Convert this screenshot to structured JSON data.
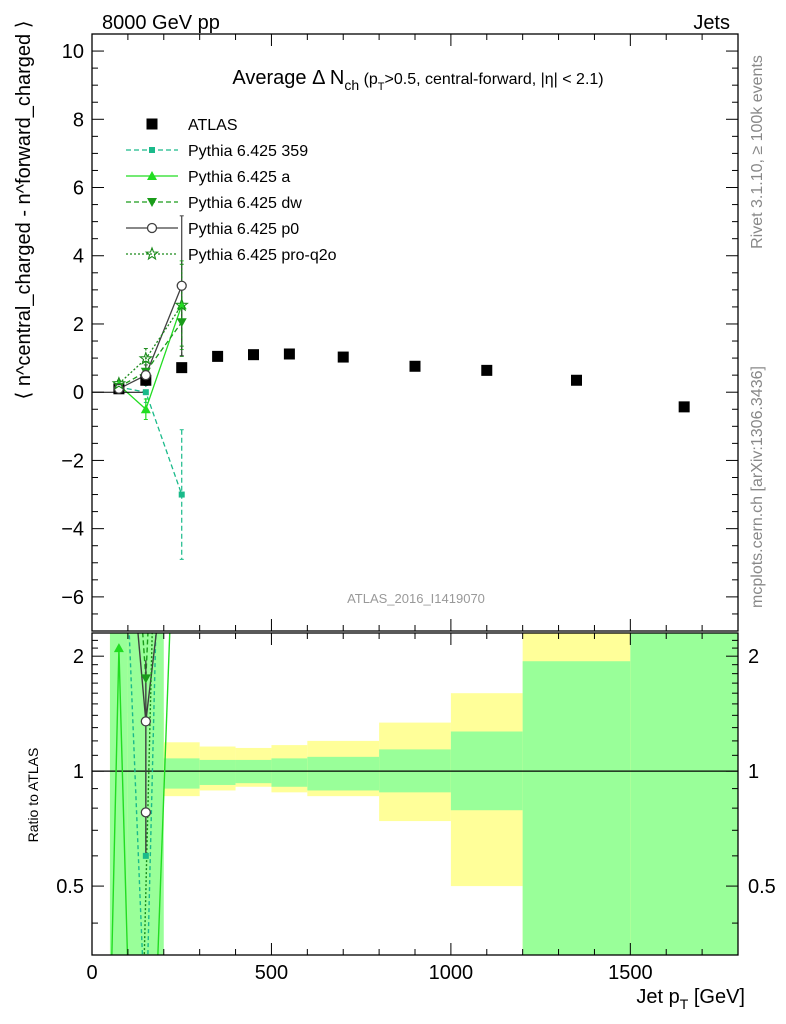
{
  "header": {
    "left": "8000 GeV pp",
    "right": "Jets"
  },
  "side_labels": {
    "rivet": "Rivet 3.1.10, ≥ 100k events",
    "mcplots": "mcplots.cern.ch [arXiv:1306.3436]"
  },
  "chart_data": {
    "type": "scatter",
    "title": {
      "prefix": "Average ",
      "delta": "Δ N",
      "sub": "ch",
      "cond_open": " (p",
      "cond_sub": "T",
      "cond_rest": ">0.5, central-forward, |η| < 2.1)"
    },
    "analysis_id": "ATLAS_2016_I1419070",
    "xlabel": "Jet p",
    "xlabel_sub": "T",
    "xlabel_unit": " [GeV]",
    "ylabel": "⟨ n^central_charged - n^forward_charged ⟩",
    "ratio_ylabel": "Ratio to ATLAS",
    "xlim": [
      0,
      1800
    ],
    "ylim": [
      -7,
      10.5
    ],
    "ratio_ylim": [
      0.33,
      2.3
    ],
    "ratio_log": true,
    "x_ticks": [
      0,
      500,
      1000,
      1500
    ],
    "y_ticks": [
      -6,
      -4,
      -2,
      0,
      2,
      4,
      6,
      8,
      10
    ],
    "ratio_ticks": [
      0.5,
      1,
      2
    ],
    "ratio_tick_labels": [
      "0.5",
      "1",
      "2"
    ],
    "legend_position": "top-left",
    "colors": {
      "data": "#000000",
      "p359": "#1aba8a",
      "pa": "#22dd22",
      "pdw": "#1a9c1a",
      "pp0": "#404040",
      "pq2o": "#1a8a1a",
      "band_green": "#99ff99",
      "band_yellow": "#ffff99"
    },
    "series": [
      {
        "name": "ATLAS",
        "key": "data",
        "x": [
          75,
          150,
          250,
          350,
          450,
          550,
          700,
          900,
          1100,
          1350,
          1650
        ],
        "y": [
          0.1,
          0.35,
          0.72,
          1.05,
          1.1,
          1.12,
          1.03,
          0.76,
          0.64,
          0.35,
          -0.43
        ]
      },
      {
        "name": "Pythia 6.425 359",
        "key": "p359",
        "x": [
          75,
          150,
          250
        ],
        "y": [
          0.15,
          0.0,
          -3.0
        ],
        "err": [
          0.1,
          0.3,
          1.9
        ]
      },
      {
        "name": "Pythia 6.425 a",
        "key": "pa",
        "x": [
          75,
          150,
          250
        ],
        "y": [
          0.21,
          -0.5,
          2.55
        ],
        "err": [
          0.1,
          0.3,
          1.3
        ]
      },
      {
        "name": "Pythia 6.425 dw",
        "key": "pdw",
        "x": [
          75,
          150,
          250
        ],
        "y": [
          0.15,
          0.6,
          2.05
        ],
        "err": [
          0.1,
          0.3,
          1.0
        ]
      },
      {
        "name": "Pythia 6.425 p0",
        "key": "pp0",
        "x": [
          75,
          150,
          250
        ],
        "y": [
          0.1,
          0.5,
          3.12
        ],
        "err": [
          0.1,
          0.3,
          2.05
        ]
      },
      {
        "name": "Pythia 6.425 pro-q2o",
        "key": "pq2o",
        "x": [
          75,
          150,
          250
        ],
        "y": [
          0.25,
          0.98,
          2.55
        ],
        "err": [
          0.1,
          0.3,
          1.2
        ]
      }
    ],
    "ratio_bands": {
      "bin_edges": [
        50,
        100,
        200,
        300,
        400,
        500,
        600,
        800,
        1000,
        1200,
        1500,
        1800
      ],
      "green_low": [
        0.33,
        0.33,
        0.9,
        0.92,
        0.93,
        0.91,
        0.89,
        0.88,
        0.79,
        0.33,
        0.33
      ],
      "green_high": [
        2.3,
        2.3,
        1.08,
        1.07,
        1.07,
        1.08,
        1.09,
        1.14,
        1.27,
        1.94,
        2.3
      ],
      "yellow_low": [
        0.33,
        0.7,
        0.86,
        0.89,
        0.91,
        0.88,
        0.86,
        0.74,
        0.5,
        0.33,
        0.33
      ],
      "yellow_high": [
        2.3,
        1.42,
        1.19,
        1.16,
        1.15,
        1.17,
        1.2,
        1.34,
        1.6,
        2.3,
        2.3
      ]
    },
    "ratio_points": [
      {
        "key": "pa",
        "x": 75,
        "r": 2.1
      },
      {
        "key": "pdw",
        "x": 150,
        "r": 1.75
      },
      {
        "key": "pp0",
        "x": 150,
        "r": 1.35
      },
      {
        "key": "pp0",
        "x": 150,
        "r": 0.78
      },
      {
        "key": "p359",
        "x": 150,
        "r": 0.6
      }
    ]
  }
}
